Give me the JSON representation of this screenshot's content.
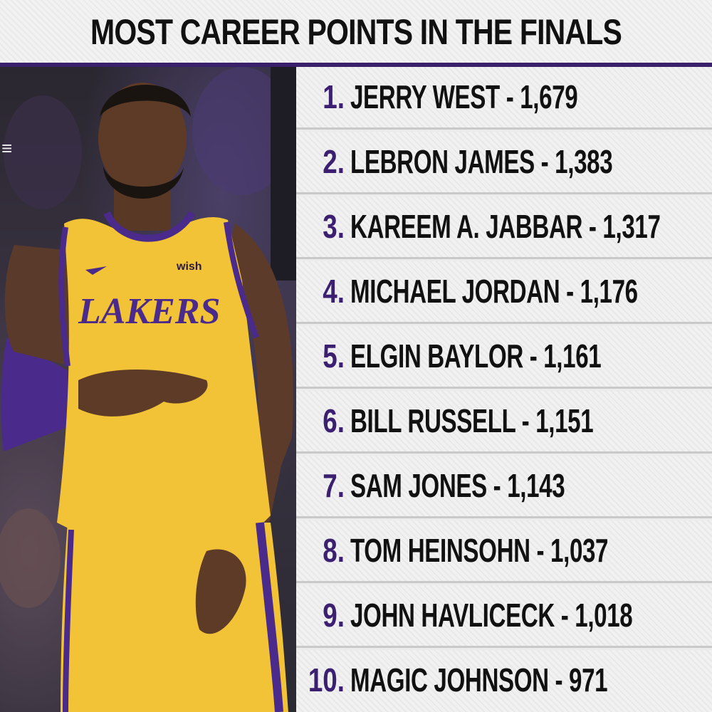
{
  "title": "MOST CAREER POINTS IN THE FINALS",
  "photo": {
    "jersey_text": "LAKERS",
    "sponsor_text": "wish"
  },
  "rankings": [
    {
      "rank": "1.",
      "text": "JERRY WEST - 1,679"
    },
    {
      "rank": "2.",
      "text": "LEBRON JAMES - 1,383"
    },
    {
      "rank": "3.",
      "text": "KAREEM A. JABBAR - 1,317"
    },
    {
      "rank": "4.",
      "text": "MICHAEL JORDAN - 1,176"
    },
    {
      "rank": "5.",
      "text": "ELGIN BAYLOR - 1,161"
    },
    {
      "rank": "6.",
      "text": "BILL RUSSELL - 1,151"
    },
    {
      "rank": "7.",
      "text": "SAM JONES - 1,143"
    },
    {
      "rank": "8.",
      "text": "TOM HEINSOHN - 1,037"
    },
    {
      "rank": "9.",
      "text": "JOHN HAVLICECK - 1,018"
    },
    {
      "rank": "10.",
      "text": "MAGIC JOHNSON - 971"
    }
  ],
  "colors": {
    "accent_purple": "#3b1f70",
    "jersey_gold": "#f2c336",
    "text": "#111111"
  }
}
